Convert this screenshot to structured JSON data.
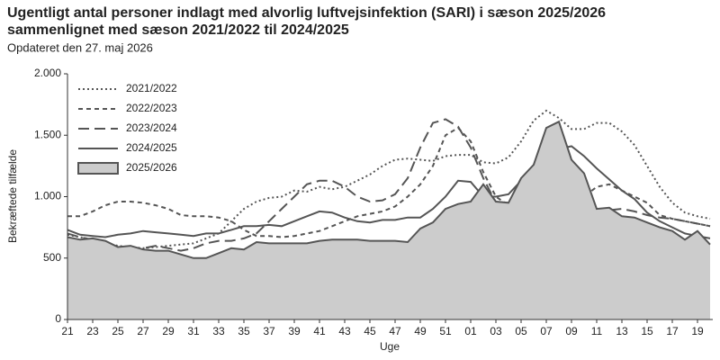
{
  "chart_data": {
    "type": "line",
    "title": "Ugentligt antal personer indlagt med alvorlig luftvejsinfektion (SARI) i sæson 2025/2026",
    "subtitle_line": "sammenlignet med sæson 2021/2022 til 2024/2025",
    "subtitle": "Opdateret den 27. maj 2026",
    "x_label": "Uge",
    "y_label": "Bekræftede tilfælde",
    "categories": [
      "21",
      null,
      "23",
      null,
      "25",
      null,
      "27",
      null,
      "29",
      null,
      "31",
      null,
      "33",
      null,
      "35",
      null,
      "37",
      null,
      "39",
      null,
      "41",
      null,
      "43",
      null,
      "45",
      null,
      "47",
      null,
      "49",
      null,
      "51",
      null,
      "01",
      null,
      "03",
      null,
      "05",
      null,
      "07",
      null,
      "09",
      null,
      "11",
      null,
      "13",
      null,
      "15",
      null,
      "17",
      null,
      "19",
      null
    ],
    "ylim": [
      0,
      2000
    ],
    "yticks": [
      0,
      500,
      {
        "value": 1000,
        "label": "1.000"
      },
      {
        "value": 1500,
        "label": "1.500"
      },
      {
        "value": 2000,
        "label": "2.000"
      }
    ],
    "series": [
      {
        "name": "2021/2022",
        "color": "#555555",
        "style": "dotted",
        "values": [
          690,
          670,
          650,
          620,
          600,
          590,
          580,
          590,
          600,
          610,
          620,
          660,
          700,
          800,
          900,
          960,
          990,
          1000,
          1050,
          1040,
          1080,
          1060,
          1080,
          1130,
          1180,
          1250,
          1300,
          1310,
          1300,
          1290,
          1330,
          1340,
          1340,
          1280,
          1270,
          1320,
          1450,
          1620,
          1700,
          1640,
          1550,
          1550,
          1600,
          1600,
          1530,
          1420,
          1250,
          1080,
          950,
          870,
          840,
          820
        ]
      },
      {
        "name": "2022/2023",
        "color": "#555555",
        "style": "dashed",
        "values": [
          840,
          840,
          880,
          930,
          960,
          960,
          950,
          930,
          900,
          850,
          840,
          840,
          830,
          800,
          730,
          680,
          680,
          670,
          680,
          700,
          720,
          760,
          800,
          840,
          860,
          880,
          920,
          1000,
          1100,
          1250,
          1500,
          1560,
          1450,
          1200,
          1000,
          930,
          1000,
          1060,
          1070,
          1050,
          1000,
          1000,
          1080,
          1100,
          1050,
          1000,
          950,
          850,
          820,
          800,
          780,
          760
        ]
      },
      {
        "name": "2023/2024",
        "color": "#555555",
        "style": "longdash",
        "values": [
          700,
          670,
          650,
          620,
          590,
          560,
          580,
          600,
          580,
          560,
          580,
          620,
          640,
          640,
          660,
          700,
          800,
          900,
          1000,
          1100,
          1130,
          1130,
          1080,
          1000,
          960,
          970,
          1020,
          1150,
          1400,
          1600,
          1630,
          1570,
          1400,
          1150,
          950,
          920,
          1000,
          1050,
          1060,
          1000,
          950,
          900,
          880,
          890,
          900,
          880,
          850,
          830,
          820,
          800,
          780,
          760
        ]
      },
      {
        "name": "2024/2025",
        "color": "#555555",
        "style": "solid",
        "values": [
          730,
          690,
          680,
          670,
          690,
          700,
          720,
          710,
          700,
          690,
          680,
          700,
          700,
          730,
          760,
          760,
          770,
          760,
          800,
          840,
          880,
          870,
          830,
          800,
          790,
          810,
          810,
          830,
          830,
          900,
          1000,
          1130,
          1120,
          1000,
          1000,
          1020,
          1130,
          1220,
          1320,
          1390,
          1410,
          1330,
          1230,
          1140,
          1050,
          980,
          870,
          800,
          750,
          700,
          680,
          660
        ]
      },
      {
        "name": "2025/2026",
        "color": "#555555",
        "fill": "#cccccc",
        "style": "area",
        "values": [
          670,
          650,
          660,
          640,
          590,
          600,
          570,
          560,
          560,
          530,
          500,
          500,
          540,
          580,
          570,
          630,
          620,
          620,
          620,
          620,
          640,
          650,
          650,
          650,
          640,
          640,
          640,
          630,
          740,
          790,
          900,
          940,
          960,
          1100,
          960,
          950,
          1150,
          1260,
          1560,
          1610,
          1300,
          1190,
          900,
          910,
          840,
          830,
          790,
          750,
          720,
          650,
          720,
          610
        ]
      }
    ]
  }
}
